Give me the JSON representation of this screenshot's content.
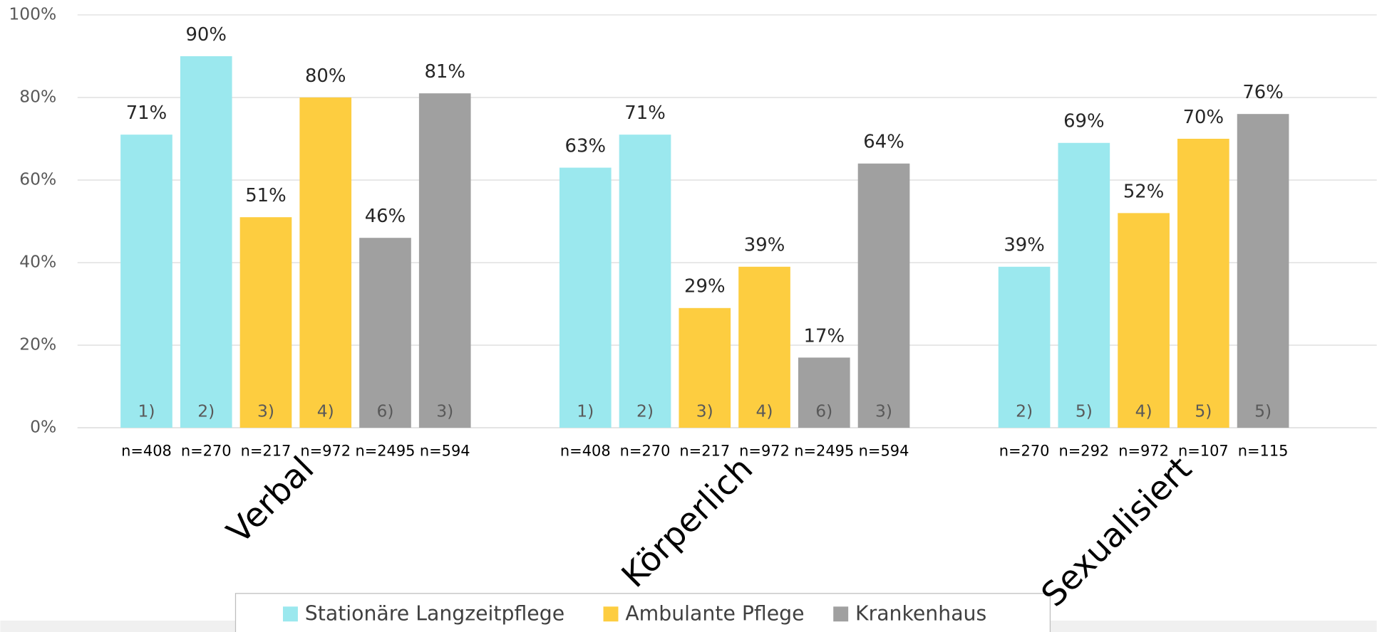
{
  "chart_data": {
    "type": "grouped-bar",
    "ylim": [
      0,
      100
    ],
    "yticks": [
      {
        "value": 0,
        "label": "0%"
      },
      {
        "value": 20,
        "label": "20%"
      },
      {
        "value": 40,
        "label": "40%"
      },
      {
        "value": 60,
        "label": "60%"
      },
      {
        "value": 80,
        "label": "80%"
      },
      {
        "value": 100,
        "label": "100%"
      }
    ],
    "grid": true,
    "legend": [
      {
        "name": "Stationäre Langzeitpflege",
        "color": "#9be8ee"
      },
      {
        "name": "Ambulante Pflege",
        "color": "#fdcd40"
      },
      {
        "name": "Krankenhaus",
        "color": "#a0a0a0"
      }
    ],
    "groups": [
      {
        "name": "Verbal",
        "bars": [
          {
            "value": 71,
            "value_label": "71%",
            "note": "1)",
            "n": "n=408",
            "color": "#9be8ee"
          },
          {
            "value": 90,
            "value_label": "90%",
            "note": "2)",
            "n": "n=270",
            "color": "#9be8ee"
          },
          {
            "value": 51,
            "value_label": "51%",
            "note": "3)",
            "n": "n=217",
            "color": "#fdcd40"
          },
          {
            "value": 80,
            "value_label": "80%",
            "note": "4)",
            "n": "n=972",
            "color": "#fdcd40"
          },
          {
            "value": 46,
            "value_label": "46%",
            "note": "6)",
            "n": "n=2495",
            "color": "#a0a0a0"
          },
          {
            "value": 81,
            "value_label": "81%",
            "note": "3)",
            "n": "n=594",
            "color": "#a0a0a0"
          }
        ]
      },
      {
        "name": "Körperlich",
        "bars": [
          {
            "value": 63,
            "value_label": "63%",
            "note": "1)",
            "n": "n=408",
            "color": "#9be8ee"
          },
          {
            "value": 71,
            "value_label": "71%",
            "note": "2)",
            "n": "n=270",
            "color": "#9be8ee"
          },
          {
            "value": 29,
            "value_label": "29%",
            "note": "3)",
            "n": "n=217",
            "color": "#fdcd40"
          },
          {
            "value": 39,
            "value_label": "39%",
            "note": "4)",
            "n": "n=972",
            "color": "#fdcd40"
          },
          {
            "value": 17,
            "value_label": "17%",
            "note": "6)",
            "n": "n=2495",
            "color": "#a0a0a0"
          },
          {
            "value": 64,
            "value_label": "64%",
            "note": "3)",
            "n": "n=594",
            "color": "#a0a0a0"
          }
        ]
      },
      {
        "name": "Sexualisiert",
        "bars": [
          {
            "value": 39,
            "value_label": "39%",
            "note": "2)",
            "n": "n=270",
            "color": "#9be8ee"
          },
          {
            "value": 69,
            "value_label": "69%",
            "note": "5)",
            "n": "n=292",
            "color": "#9be8ee"
          },
          {
            "value": 52,
            "value_label": "52%",
            "note": "4)",
            "n": "n=972",
            "color": "#fdcd40"
          },
          {
            "value": 70,
            "value_label": "70%",
            "note": "5)",
            "n": "n=107",
            "color": "#fdcd40"
          },
          {
            "value": 76,
            "value_label": "76%",
            "note": "5)",
            "n": "n=115",
            "color": "#a0a0a0"
          }
        ]
      }
    ]
  }
}
